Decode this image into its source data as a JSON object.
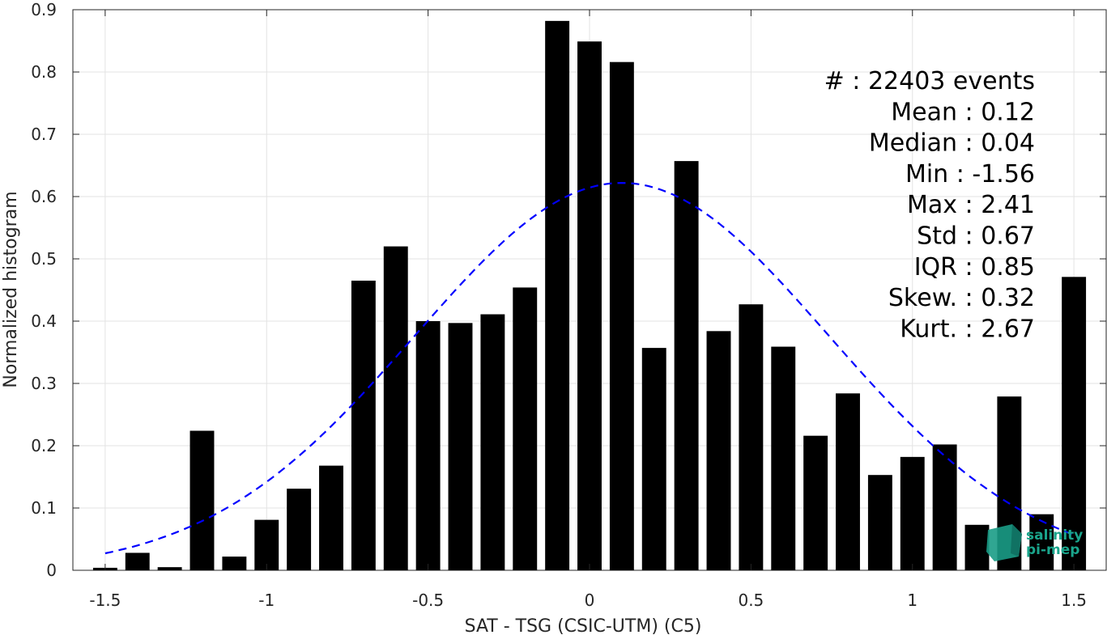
{
  "chart_data": {
    "type": "bar",
    "xlabel": "SAT - TSG (CSIC-UTM) (C5)",
    "ylabel": "Normalized histogram",
    "xlim": [
      -1.6,
      1.6
    ],
    "ylim": [
      0,
      0.9
    ],
    "xticks": [
      -1.5,
      -1,
      -0.5,
      0,
      0.5,
      1,
      1.5
    ],
    "xtick_labels": [
      "-1.5",
      "-1",
      "-0.5",
      "0",
      "0.5",
      "1",
      "1.5"
    ],
    "yticks": [
      0,
      0.1,
      0.2,
      0.3,
      0.4,
      0.5,
      0.6,
      0.7,
      0.8,
      0.9
    ],
    "ytick_labels": [
      "0",
      "0.1",
      "0.2",
      "0.3",
      "0.4",
      "0.5",
      "0.6",
      "0.7",
      "0.8",
      "0.9"
    ],
    "grid": true,
    "bar_color": "#000000",
    "x": [
      -1.5,
      -1.4,
      -1.3,
      -1.2,
      -1.1,
      -1.0,
      -0.9,
      -0.8,
      -0.7,
      -0.6,
      -0.5,
      -0.4,
      -0.3,
      -0.2,
      -0.1,
      0.0,
      0.1,
      0.2,
      0.3,
      0.4,
      0.5,
      0.6,
      0.7,
      0.8,
      0.9,
      1.0,
      1.1,
      1.2,
      1.3,
      1.4,
      1.5
    ],
    "values": [
      0.004,
      0.028,
      0.005,
      0.224,
      0.022,
      0.081,
      0.131,
      0.168,
      0.465,
      0.52,
      0.4,
      0.397,
      0.411,
      0.454,
      0.882,
      0.849,
      0.816,
      0.357,
      0.657,
      0.384,
      0.427,
      0.359,
      0.216,
      0.284,
      0.153,
      0.182,
      0.202,
      0.073,
      0.279,
      0.09,
      0.471
    ],
    "fit_curve": {
      "style": "dashed",
      "color": "#0000ff",
      "mean": 0.1,
      "std": 0.64,
      "peak": 0.622,
      "x_range": [
        -1.5,
        1.5
      ]
    },
    "annotations": [
      "#  : 22403 events",
      "Mean : 0.12",
      "Median : 0.04",
      "Min : -1.56",
      "Max : 2.41",
      "Std : 0.67",
      "IQR : 0.85",
      "Skew. : 0.32",
      "Kurt. : 2.67"
    ]
  },
  "logo": {
    "line1": "salinity",
    "line2": "pi-mep"
  }
}
